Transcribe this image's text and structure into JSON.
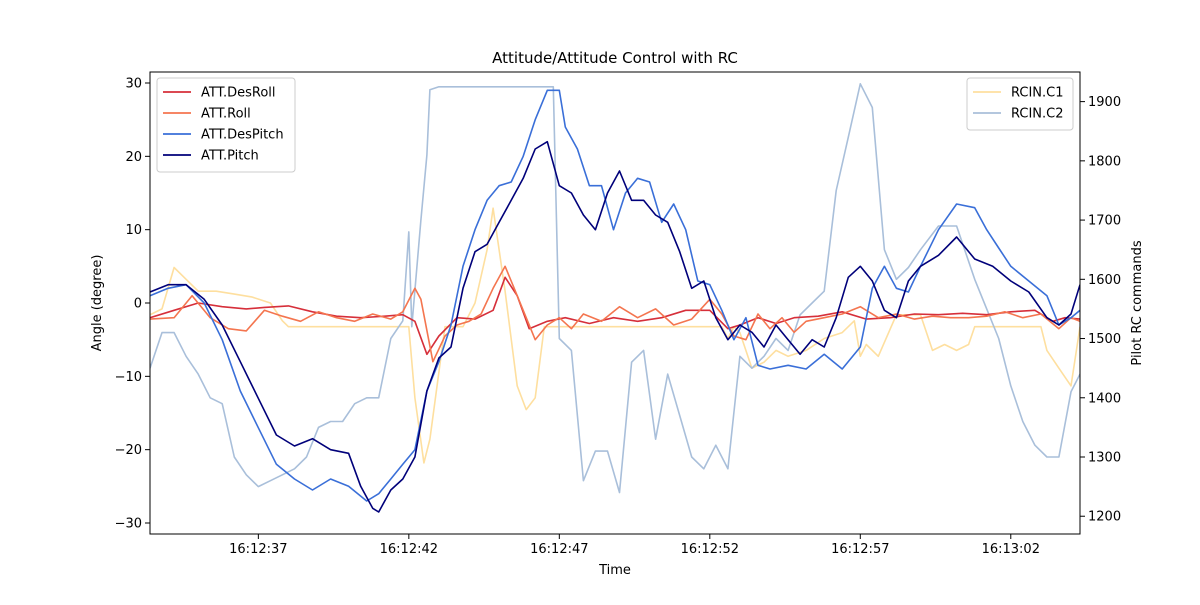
{
  "chart_data": {
    "type": "line",
    "title": "Attitude/Attitude Control with RC",
    "xlabel": "Time",
    "ylabel": "Angle (degree)",
    "y2label": "Pilot RC commands",
    "xlim": [
      33.4,
      64.3
    ],
    "ylim": [
      -31.5,
      31.5
    ],
    "y2lim": [
      1170,
      1950
    ],
    "x_ticks": [
      37,
      42,
      47,
      52,
      57,
      62
    ],
    "x_tick_labels": [
      "16:12:37",
      "16:12:42",
      "16:12:47",
      "16:12:52",
      "16:12:57",
      "16:13:02"
    ],
    "y_ticks": [
      -30,
      -20,
      -10,
      0,
      10,
      20,
      30
    ],
    "y_tick_labels": [
      "−30",
      "−20",
      "−10",
      "0",
      "10",
      "20",
      "30"
    ],
    "y2_ticks": [
      1200,
      1300,
      1400,
      1500,
      1600,
      1700,
      1800,
      1900
    ],
    "y2_tick_labels": [
      "1200",
      "1300",
      "1400",
      "1500",
      "1600",
      "1700",
      "1800",
      "1900"
    ],
    "grid": false,
    "legend_left": {
      "placement": "top-left",
      "entries": [
        "ATT.DesRoll",
        "ATT.Roll",
        "ATT.DesPitch",
        "ATT.Pitch"
      ]
    },
    "legend_right": {
      "placement": "top-right",
      "entries": [
        "RCIN.C1",
        "RCIN.C2"
      ]
    },
    "series": [
      {
        "name": "ATT.DesRoll",
        "axis": "left",
        "color": "#d62f3a",
        "x": [
          33.4,
          34.2,
          35.0,
          35.8,
          36.6,
          37.2,
          38.0,
          38.8,
          39.6,
          40.4,
          41.2,
          41.8,
          42.2,
          42.6,
          43.0,
          43.6,
          44.2,
          44.8,
          45.2,
          45.6,
          46.0,
          46.6,
          47.2,
          48.0,
          48.8,
          49.6,
          50.4,
          51.2,
          52.0,
          52.6,
          53.0,
          53.6,
          54.2,
          54.8,
          55.6,
          56.4,
          57.2,
          58.0,
          58.8,
          59.6,
          60.4,
          61.2,
          62.0,
          62.8,
          63.4,
          63.8,
          64.3
        ],
        "y": [
          -2.0,
          -1.0,
          0.0,
          -0.5,
          -0.8,
          -0.6,
          -0.4,
          -1.2,
          -1.8,
          -2.0,
          -1.8,
          -1.6,
          -2.5,
          -7.0,
          -4.5,
          -2.0,
          -2.2,
          -1.0,
          3.5,
          1.0,
          -3.5,
          -2.5,
          -2.0,
          -2.8,
          -2.0,
          -2.5,
          -2.0,
          -1.0,
          -1.0,
          -3.5,
          -3.0,
          -2.0,
          -2.8,
          -2.0,
          -1.8,
          -1.2,
          -2.2,
          -2.0,
          -1.5,
          -1.6,
          -1.4,
          -1.6,
          -1.2,
          -1.0,
          -2.5,
          -2.0,
          -2.2
        ]
      },
      {
        "name": "ATT.Roll",
        "axis": "left",
        "color": "#f4754f",
        "x": [
          33.4,
          34.2,
          34.8,
          35.4,
          36.0,
          36.6,
          37.2,
          37.8,
          38.4,
          39.0,
          39.6,
          40.2,
          40.8,
          41.4,
          41.8,
          42.2,
          42.4,
          42.8,
          43.2,
          43.6,
          44.0,
          44.4,
          44.8,
          45.2,
          45.5,
          45.8,
          46.2,
          46.6,
          47.0,
          47.4,
          47.8,
          48.4,
          49.0,
          49.6,
          50.2,
          50.8,
          51.4,
          52.0,
          52.4,
          52.8,
          53.2,
          53.6,
          54.0,
          54.4,
          54.8,
          55.2,
          55.8,
          56.4,
          57.0,
          57.6,
          58.2,
          58.8,
          59.4,
          60.0,
          60.6,
          61.2,
          61.8,
          62.4,
          63.0,
          63.6,
          64.0,
          64.3
        ],
        "y": [
          -2.2,
          -2.0,
          1.0,
          -2.0,
          -3.5,
          -3.8,
          -1.0,
          -1.8,
          -2.5,
          -1.2,
          -2.0,
          -2.5,
          -1.5,
          -2.2,
          -1.2,
          2.0,
          0.5,
          -8.0,
          -4.5,
          -3.0,
          -2.5,
          -1.5,
          2.0,
          5.0,
          2.0,
          -1.0,
          -5.0,
          -3.0,
          -2.0,
          -3.5,
          -1.5,
          -2.5,
          -0.5,
          -2.0,
          -0.8,
          -3.0,
          -2.2,
          0.5,
          -1.5,
          -4.5,
          -5.0,
          -1.5,
          -3.5,
          -2.0,
          -4.0,
          -2.5,
          -2.0,
          -1.5,
          -0.5,
          -2.0,
          -1.5,
          -2.2,
          -1.8,
          -2.0,
          -2.0,
          -1.8,
          -1.2,
          -2.0,
          -1.5,
          -3.5,
          -2.0,
          -2.5
        ]
      },
      {
        "name": "ATT.DesPitch",
        "axis": "left",
        "color": "#3a6fd8",
        "x": [
          33.4,
          34.0,
          34.6,
          35.2,
          35.8,
          36.4,
          37.0,
          37.6,
          38.2,
          38.8,
          39.4,
          40.0,
          40.6,
          41.0,
          41.4,
          41.8,
          42.2,
          42.6,
          43.0,
          43.4,
          43.8,
          44.2,
          44.6,
          45.0,
          45.4,
          45.8,
          46.2,
          46.6,
          47.0,
          47.2,
          47.6,
          48.0,
          48.4,
          48.8,
          49.2,
          49.6,
          50.0,
          50.4,
          50.8,
          51.2,
          51.6,
          52.0,
          52.4,
          52.8,
          53.2,
          53.6,
          54.0,
          54.6,
          55.2,
          55.8,
          56.4,
          57.0,
          57.4,
          57.8,
          58.2,
          58.6,
          59.0,
          59.6,
          60.2,
          60.8,
          61.2,
          61.6,
          62.0,
          62.6,
          63.2,
          63.6,
          64.0,
          64.3
        ],
        "y": [
          1.0,
          2.0,
          2.5,
          0.0,
          -5.0,
          -12.0,
          -17.0,
          -22.0,
          -24.0,
          -25.5,
          -24.0,
          -25.0,
          -27.0,
          -26.0,
          -24.0,
          -22.0,
          -20.0,
          -12.0,
          -8.0,
          -3.0,
          5.0,
          10.0,
          14.0,
          16.0,
          16.5,
          20.0,
          25.0,
          29.0,
          29.0,
          24.0,
          21.0,
          16.0,
          16.0,
          10.0,
          15.0,
          17.0,
          16.5,
          11.0,
          13.5,
          10.0,
          3.0,
          2.5,
          -1.0,
          -5.0,
          -2.0,
          -8.5,
          -9.0,
          -8.5,
          -9.0,
          -7.0,
          -9.0,
          -6.0,
          2.0,
          5.0,
          2.0,
          1.5,
          5.0,
          10.0,
          13.5,
          13.0,
          10.0,
          7.5,
          5.0,
          3.0,
          1.0,
          -3.0,
          -2.0,
          -1.0
        ]
      },
      {
        "name": "ATT.Pitch",
        "axis": "left",
        "color": "#00007a",
        "x": [
          33.4,
          34.0,
          34.6,
          35.2,
          35.8,
          36.4,
          37.0,
          37.6,
          38.2,
          38.8,
          39.4,
          40.0,
          40.4,
          40.8,
          41.0,
          41.4,
          41.8,
          42.2,
          42.6,
          43.0,
          43.4,
          43.8,
          44.2,
          44.6,
          45.0,
          45.4,
          45.8,
          46.2,
          46.6,
          47.0,
          47.4,
          47.8,
          48.2,
          48.6,
          49.0,
          49.4,
          49.8,
          50.2,
          50.6,
          51.0,
          51.4,
          51.8,
          52.2,
          52.6,
          53.0,
          53.4,
          53.8,
          54.2,
          54.6,
          55.0,
          55.4,
          55.8,
          56.2,
          56.6,
          57.0,
          57.4,
          57.8,
          58.2,
          58.6,
          59.0,
          59.6,
          60.2,
          60.8,
          61.4,
          62.0,
          62.6,
          63.2,
          63.6,
          64.0,
          64.3
        ],
        "y": [
          1.5,
          2.5,
          2.5,
          0.5,
          -3.0,
          -8.0,
          -13.0,
          -18.0,
          -19.5,
          -18.5,
          -20.0,
          -20.5,
          -25.0,
          -28.0,
          -28.5,
          -25.5,
          -24.0,
          -21.0,
          -12.0,
          -7.5,
          -6.0,
          2.0,
          7.0,
          8.0,
          11.0,
          14.0,
          17.0,
          21.0,
          22.0,
          16.0,
          15.0,
          12.0,
          10.0,
          15.0,
          18.0,
          14.0,
          14.0,
          12.0,
          11.0,
          7.0,
          2.0,
          3.0,
          -2.0,
          -5.0,
          -3.0,
          -4.0,
          -6.0,
          -3.0,
          -5.0,
          -7.0,
          -5.0,
          -6.0,
          -2.0,
          3.5,
          5.0,
          3.0,
          -1.0,
          -2.0,
          3.0,
          5.0,
          6.5,
          9.0,
          6.0,
          5.0,
          3.0,
          1.5,
          -2.0,
          -3.0,
          -1.5,
          2.5
        ]
      },
      {
        "name": "RCIN.C1",
        "axis": "right",
        "color": "#fedf9f",
        "x": [
          33.4,
          33.8,
          34.2,
          34.6,
          35.0,
          35.6,
          36.2,
          36.8,
          37.4,
          37.8,
          38.0,
          38.5,
          39.5,
          40.5,
          41.5,
          42.0,
          42.2,
          42.5,
          42.7,
          43.2,
          43.8,
          44.2,
          44.6,
          44.8,
          45.2,
          45.6,
          45.9,
          46.2,
          46.5,
          46.8,
          47.2,
          48.0,
          49.0,
          50.0,
          51.0,
          52.0,
          52.4,
          52.6,
          52.8,
          53.0,
          53.4,
          53.8,
          54.2,
          54.6,
          55.2,
          55.8,
          56.4,
          56.8,
          57.0,
          57.2,
          57.6,
          58.2,
          58.6,
          59.0,
          59.4,
          59.8,
          60.2,
          60.6,
          60.8,
          61.4,
          62.0,
          62.6,
          63.0,
          63.2,
          63.6,
          64.0,
          64.3
        ],
        "y": [
          1540,
          1550,
          1620,
          1600,
          1580,
          1580,
          1575,
          1570,
          1560,
          1530,
          1520,
          1520,
          1520,
          1520,
          1520,
          1520,
          1400,
          1290,
          1330,
          1520,
          1520,
          1560,
          1650,
          1720,
          1580,
          1420,
          1380,
          1400,
          1520,
          1520,
          1520,
          1520,
          1520,
          1520,
          1520,
          1520,
          1520,
          1500,
          1520,
          1510,
          1450,
          1460,
          1480,
          1470,
          1480,
          1500,
          1510,
          1530,
          1470,
          1490,
          1470,
          1540,
          1540,
          1540,
          1480,
          1490,
          1480,
          1490,
          1520,
          1520,
          1520,
          1520,
          1520,
          1480,
          1450,
          1420,
          1520
        ]
      },
      {
        "name": "RCIN.C2",
        "axis": "right",
        "color": "#a9bfda",
        "x": [
          33.4,
          33.8,
          34.2,
          34.6,
          35.0,
          35.4,
          35.8,
          36.2,
          36.6,
          37.0,
          37.4,
          37.8,
          38.2,
          38.6,
          39.0,
          39.4,
          39.8,
          40.2,
          40.6,
          41.0,
          41.4,
          41.8,
          42.0,
          42.1,
          42.4,
          42.6,
          42.7,
          43.0,
          43.4,
          43.8,
          44.2,
          44.6,
          45.0,
          45.4,
          45.8,
          46.2,
          46.4,
          46.6,
          46.8,
          47.0,
          47.4,
          47.8,
          48.2,
          48.6,
          49.0,
          49.4,
          49.8,
          50.2,
          50.6,
          51.0,
          51.4,
          51.8,
          52.2,
          52.6,
          53.0,
          53.4,
          53.8,
          54.2,
          54.6,
          55.0,
          55.4,
          55.8,
          56.2,
          56.6,
          57.0,
          57.4,
          57.8,
          58.2,
          58.6,
          59.0,
          59.6,
          60.2,
          60.8,
          61.2,
          61.6,
          62.0,
          62.4,
          62.8,
          63.2,
          63.6,
          64.0,
          64.3
        ],
        "y": [
          1450,
          1510,
          1510,
          1470,
          1440,
          1400,
          1390,
          1300,
          1270,
          1250,
          1260,
          1270,
          1280,
          1300,
          1350,
          1360,
          1360,
          1390,
          1400,
          1400,
          1500,
          1530,
          1680,
          1520,
          1700,
          1810,
          1920,
          1925,
          1925,
          1925,
          1925,
          1925,
          1925,
          1925,
          1925,
          1925,
          1925,
          1925,
          1925,
          1500,
          1480,
          1260,
          1310,
          1310,
          1240,
          1460,
          1480,
          1330,
          1440,
          1370,
          1300,
          1280,
          1320,
          1280,
          1470,
          1450,
          1470,
          1500,
          1480,
          1540,
          1560,
          1580,
          1750,
          1840,
          1930,
          1890,
          1650,
          1600,
          1620,
          1650,
          1690,
          1690,
          1600,
          1550,
          1500,
          1420,
          1360,
          1320,
          1300,
          1300,
          1410,
          1440
        ]
      }
    ]
  }
}
